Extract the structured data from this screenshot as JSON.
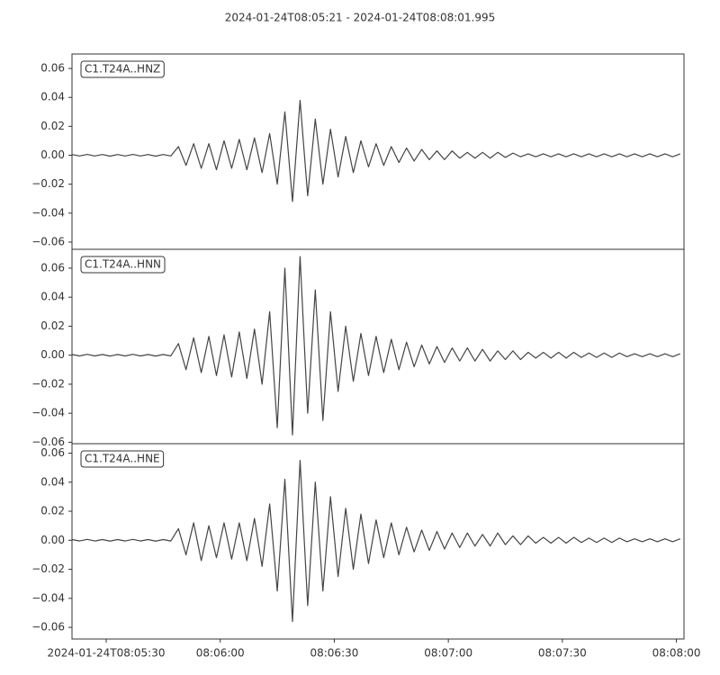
{
  "chart_data": {
    "type": "line",
    "title": "2024-01-24T08:05:21  -  2024-01-24T08:08:01.995",
    "x": [
      0,
      2,
      4,
      6,
      8,
      10,
      12,
      14,
      16,
      18,
      20,
      22,
      24,
      26,
      28,
      30,
      32,
      34,
      36,
      38,
      40,
      42,
      44,
      46,
      48,
      50,
      52,
      54,
      56,
      58,
      60,
      62,
      64,
      66,
      68,
      70,
      72,
      74,
      76,
      78,
      80,
      82,
      84,
      86,
      88,
      90,
      92,
      94,
      96,
      98,
      100,
      102,
      104,
      106,
      108,
      110,
      112,
      114,
      116,
      118,
      120,
      122,
      124,
      126,
      128,
      130,
      132,
      134,
      136,
      138,
      140,
      142,
      144,
      146,
      148,
      150,
      152,
      154,
      156,
      158,
      160
    ],
    "xlim": [
      0,
      160.995
    ],
    "xticks": [
      {
        "value": 9,
        "label": "2024-01-24T08:05:30"
      },
      {
        "value": 39,
        "label": "08:06:00"
      },
      {
        "value": 69,
        "label": "08:06:30"
      },
      {
        "value": 99,
        "label": "08:07:00"
      },
      {
        "value": 129,
        "label": "08:07:30"
      },
      {
        "value": 159,
        "label": "08:08:00"
      }
    ],
    "series": [
      {
        "name": "C1.T24A..HNZ",
        "color": "#444444",
        "ylim": [
          -0.065,
          0.07
        ],
        "yticks": [
          {
            "value": 0.06,
            "label": "0.06"
          },
          {
            "value": 0.04,
            "label": "0.04"
          },
          {
            "value": 0.02,
            "label": "0.02"
          },
          {
            "value": 0,
            "label": "0.00"
          },
          {
            "value": -0.02,
            "label": "−0.02"
          },
          {
            "value": -0.04,
            "label": "−0.04"
          },
          {
            "value": -0.06,
            "label": "−0.06"
          }
        ],
        "values": [
          0.0005,
          -0.0005,
          0.0006,
          -0.0005,
          0.0005,
          -0.0006,
          0.0005,
          -0.0005,
          0.0006,
          -0.0005,
          0.0005,
          -0.0006,
          0.0005,
          -0.0005,
          0.006,
          -0.007,
          0.008,
          -0.009,
          0.008,
          -0.01,
          0.01,
          -0.009,
          0.011,
          -0.01,
          0.012,
          -0.012,
          0.015,
          -0.02,
          0.03,
          -0.032,
          0.038,
          -0.028,
          0.025,
          -0.02,
          0.018,
          -0.015,
          0.013,
          -0.012,
          0.01,
          -0.008,
          0.008,
          -0.007,
          0.006,
          -0.005,
          0.005,
          -0.004,
          0.004,
          -0.003,
          0.003,
          -0.003,
          0.003,
          -0.002,
          0.002,
          -0.002,
          0.002,
          -0.002,
          0.002,
          -0.0015,
          0.0015,
          -0.001,
          0.001,
          -0.001,
          0.001,
          -0.001,
          0.001,
          -0.001,
          0.001,
          -0.001,
          0.001,
          -0.001,
          0.001,
          -0.001,
          0.001,
          -0.001,
          0.001,
          -0.001,
          0.001,
          -0.001,
          0.001,
          -0.001,
          0.001
        ]
      },
      {
        "name": "C1.T24A..HNN",
        "color": "#444444",
        "ylim": [
          -0.061,
          0.073
        ],
        "yticks": [
          {
            "value": 0.06,
            "label": "0.06"
          },
          {
            "value": 0.04,
            "label": "0.04"
          },
          {
            "value": 0.02,
            "label": "0.02"
          },
          {
            "value": 0,
            "label": "0.00"
          },
          {
            "value": -0.02,
            "label": "−0.02"
          },
          {
            "value": -0.04,
            "label": "−0.04"
          },
          {
            "value": -0.06,
            "label": "−0.06"
          }
        ],
        "values": [
          0.0005,
          -0.0005,
          0.0006,
          -0.0005,
          0.0005,
          -0.0006,
          0.0005,
          -0.0005,
          0.0006,
          -0.0005,
          0.0005,
          -0.0006,
          0.0005,
          -0.0005,
          0.008,
          -0.01,
          0.012,
          -0.012,
          0.013,
          -0.014,
          0.014,
          -0.015,
          0.016,
          -0.016,
          0.018,
          -0.02,
          0.03,
          -0.05,
          0.06,
          -0.055,
          0.068,
          -0.04,
          0.045,
          -0.045,
          0.03,
          -0.025,
          0.02,
          -0.018,
          0.015,
          -0.014,
          0.013,
          -0.012,
          0.011,
          -0.01,
          0.009,
          -0.008,
          0.007,
          -0.006,
          0.006,
          -0.005,
          0.005,
          -0.004,
          0.005,
          -0.004,
          0.004,
          -0.004,
          0.003,
          -0.003,
          0.003,
          -0.003,
          0.002,
          -0.002,
          0.002,
          -0.002,
          0.002,
          -0.002,
          0.002,
          -0.0015,
          0.0015,
          -0.0015,
          0.0015,
          -0.0015,
          0.0015,
          -0.001,
          0.001,
          -0.001,
          0.001,
          -0.001,
          0.001,
          -0.001,
          0.001
        ]
      },
      {
        "name": "C1.T24A..HNE",
        "color": "#444444",
        "ylim": [
          -0.068,
          0.0665
        ],
        "yticks": [
          {
            "value": 0.06,
            "label": "0.06"
          },
          {
            "value": 0.04,
            "label": "0.04"
          },
          {
            "value": 0.02,
            "label": "0.02"
          },
          {
            "value": 0,
            "label": "0.00"
          },
          {
            "value": -0.02,
            "label": "−0.02"
          },
          {
            "value": -0.04,
            "label": "−0.04"
          },
          {
            "value": -0.06,
            "label": "−0.06"
          }
        ],
        "values": [
          0.0005,
          -0.0005,
          0.0006,
          -0.0005,
          0.0005,
          -0.0006,
          0.0005,
          -0.0005,
          0.0006,
          -0.0005,
          0.0005,
          -0.0006,
          0.0005,
          -0.0005,
          0.008,
          -0.01,
          0.012,
          -0.014,
          0.01,
          -0.012,
          0.012,
          -0.013,
          0.012,
          -0.014,
          0.015,
          -0.018,
          0.025,
          -0.035,
          0.042,
          -0.056,
          0.055,
          -0.045,
          0.04,
          -0.035,
          0.03,
          -0.025,
          0.022,
          -0.02,
          0.018,
          -0.016,
          0.014,
          -0.012,
          0.012,
          -0.01,
          0.009,
          -0.008,
          0.007,
          -0.007,
          0.006,
          -0.006,
          0.005,
          -0.005,
          0.005,
          -0.004,
          0.004,
          -0.004,
          0.005,
          -0.003,
          0.003,
          -0.003,
          0.003,
          -0.002,
          0.002,
          -0.002,
          0.002,
          -0.002,
          0.002,
          -0.0015,
          0.0015,
          -0.0015,
          0.0015,
          -0.0015,
          0.0015,
          -0.001,
          0.001,
          -0.001,
          0.001,
          -0.001,
          0.001,
          -0.001,
          0.001
        ]
      }
    ]
  }
}
